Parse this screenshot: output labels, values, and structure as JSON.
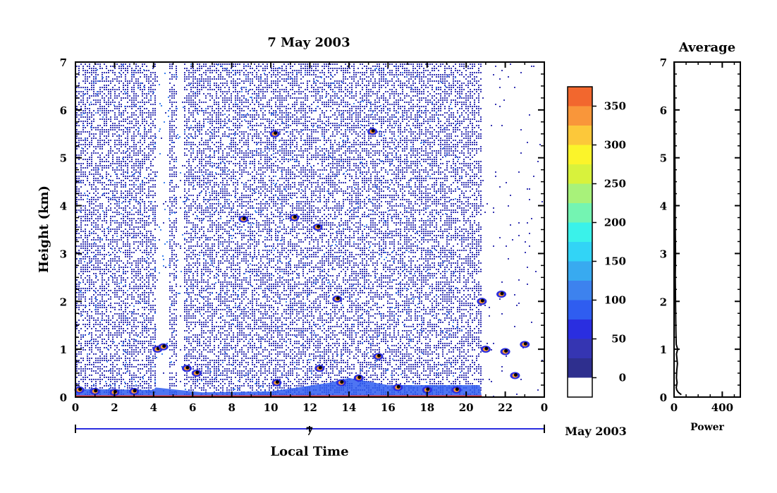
{
  "chart_data": [
    {
      "type": "heatmap",
      "title": "7 May 2003",
      "xlabel": "Local Time",
      "ylabel": "Height (km)",
      "xlim": [
        0,
        24
      ],
      "ylim": [
        0,
        7
      ],
      "xticks": [
        "0",
        "2",
        "4",
        "6",
        "8",
        "10",
        "12",
        "14",
        "16",
        "18",
        "20",
        "22",
        "0"
      ],
      "yticks": [
        "0",
        "1",
        "2",
        "3",
        "4",
        "5",
        "6",
        "7"
      ],
      "date_axis": {
        "day_label": "7",
        "month_label": "May 2003"
      },
      "colorbar": {
        "ticks": [
          "0",
          "50",
          "100",
          "150",
          "200",
          "250",
          "300",
          "350"
        ],
        "range": [
          -25,
          375
        ],
        "levels": [
          {
            "from": -25,
            "color": "#ffffff"
          },
          {
            "from": 0,
            "color": "#2e2f8e"
          },
          {
            "from": 25,
            "color": "#3535b2"
          },
          {
            "from": 50,
            "color": "#2a2ee0"
          },
          {
            "from": 75,
            "color": "#2f5df0"
          },
          {
            "from": 100,
            "color": "#3d82ee"
          },
          {
            "from": 125,
            "color": "#38aaf0"
          },
          {
            "from": 150,
            "color": "#32d4f6"
          },
          {
            "from": 175,
            "color": "#3af2ea"
          },
          {
            "from": 200,
            "color": "#74f4b2"
          },
          {
            "from": 225,
            "color": "#a8f27a"
          },
          {
            "from": 250,
            "color": "#d8f23c"
          },
          {
            "from": 275,
            "color": "#fbf42a"
          },
          {
            "from": 300,
            "color": "#fcc83a"
          },
          {
            "from": 325,
            "color": "#f9963a"
          },
          {
            "from": 350,
            "color": "#f2672e"
          },
          {
            "from": 375,
            "color": "#e63a32"
          }
        ]
      },
      "strong_echoes": [
        {
          "t": 0.2,
          "h": 0.15
        },
        {
          "t": 1.0,
          "h": 0.12
        },
        {
          "t": 2.0,
          "h": 0.1
        },
        {
          "t": 3.0,
          "h": 0.12
        },
        {
          "t": 4.2,
          "h": 1.0
        },
        {
          "t": 4.5,
          "h": 1.05
        },
        {
          "t": 5.7,
          "h": 0.6
        },
        {
          "t": 6.2,
          "h": 0.5
        },
        {
          "t": 8.6,
          "h": 3.72
        },
        {
          "t": 10.2,
          "h": 5.5
        },
        {
          "t": 10.3,
          "h": 0.3
        },
        {
          "t": 11.2,
          "h": 3.75
        },
        {
          "t": 12.4,
          "h": 3.55
        },
        {
          "t": 12.5,
          "h": 0.6
        },
        {
          "t": 13.4,
          "h": 2.05
        },
        {
          "t": 13.6,
          "h": 0.3
        },
        {
          "t": 14.5,
          "h": 0.4
        },
        {
          "t": 15.2,
          "h": 5.55
        },
        {
          "t": 15.5,
          "h": 0.85
        },
        {
          "t": 16.5,
          "h": 0.2
        },
        {
          "t": 18.0,
          "h": 0.15
        },
        {
          "t": 19.5,
          "h": 0.15
        },
        {
          "t": 20.8,
          "h": 2.0
        },
        {
          "t": 21.0,
          "h": 1.0
        },
        {
          "t": 21.8,
          "h": 2.15
        },
        {
          "t": 22.0,
          "h": 0.95
        },
        {
          "t": 22.5,
          "h": 0.45
        },
        {
          "t": 23.0,
          "h": 1.1
        }
      ]
    },
    {
      "type": "line",
      "title": "Average",
      "xlabel": "Power",
      "ylabel": "",
      "xlim": [
        0,
        550
      ],
      "ylim": [
        0,
        7
      ],
      "xticks": [
        "0",
        "400"
      ],
      "yticks": [
        "0",
        "1",
        "2",
        "3",
        "4",
        "5",
        "6",
        "7"
      ],
      "series": [
        {
          "x": [
            60,
            35,
            22,
            18,
            25,
            20,
            22,
            28,
            24,
            20,
            30,
            18,
            16,
            14,
            12,
            10,
            12,
            10,
            10,
            9,
            10,
            8,
            7,
            6,
            5,
            4,
            3,
            3,
            2
          ],
          "y": [
            0.05,
            0.1,
            0.15,
            0.2,
            0.3,
            0.4,
            0.55,
            0.7,
            0.8,
            0.9,
            1.0,
            1.1,
            1.3,
            1.6,
            2.0,
            2.5,
            3.0,
            3.5,
            3.7,
            3.8,
            4.0,
            4.5,
            5.0,
            5.5,
            6.0,
            6.3,
            6.6,
            6.9,
            7.0
          ]
        }
      ]
    }
  ]
}
